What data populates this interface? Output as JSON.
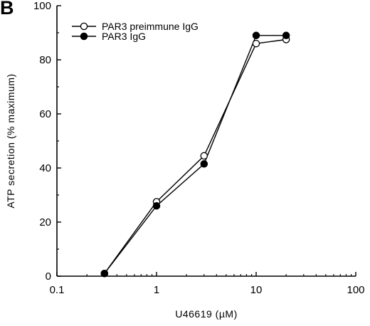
{
  "panel_label": "B",
  "chart_data": {
    "type": "line",
    "xlabel": "U46619 (µM)",
    "ylabel": "ATP secretion (% maximum)",
    "x_scale": "log",
    "xlim": [
      0.1,
      100
    ],
    "ylim": [
      0,
      100
    ],
    "x_ticks": [
      0.1,
      1,
      10,
      100
    ],
    "x_tick_labels": [
      "0.1",
      "1",
      "10",
      "100"
    ],
    "y_ticks": [
      0,
      20,
      40,
      60,
      80,
      100
    ],
    "y_tick_labels": [
      "0",
      "20",
      "40",
      "60",
      "80",
      "100"
    ],
    "legend_position": "top-left",
    "grid": false,
    "series": [
      {
        "name": "PAR3 preimmune IgG",
        "marker": "open-circle",
        "x": [
          0.3,
          1,
          3,
          10,
          20
        ],
        "y": [
          1,
          27.5,
          44.5,
          86,
          87.5
        ]
      },
      {
        "name": "PAR3 IgG",
        "marker": "filled-circle",
        "x": [
          0.3,
          1,
          3,
          10,
          20
        ],
        "y": [
          1,
          26,
          41.5,
          89,
          89
        ]
      }
    ]
  }
}
